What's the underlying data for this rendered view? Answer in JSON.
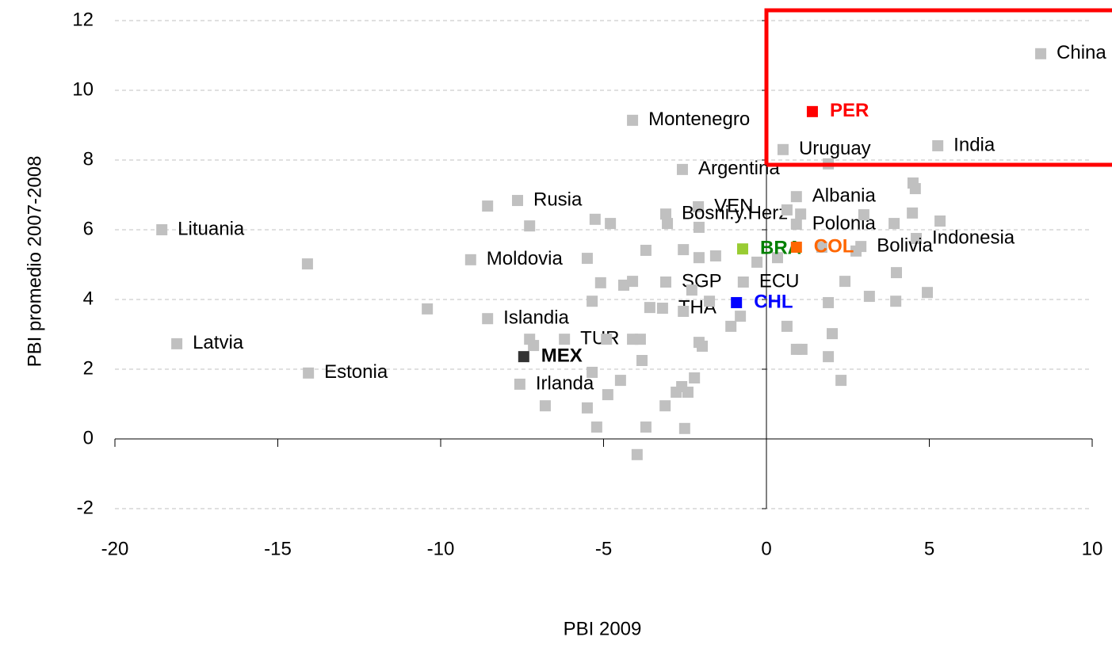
{
  "chart_data": {
    "type": "scatter",
    "xlabel": "PBI 2009",
    "ylabel": "PBI promedio 2007-2008",
    "xlim": [
      -20,
      10
    ],
    "xticks": [
      -20,
      -15,
      -10,
      -5,
      0,
      5,
      10
    ],
    "ylim": [
      -2,
      12
    ],
    "yticks": [
      -2,
      0,
      2,
      4,
      6,
      8,
      10,
      12
    ],
    "grid": true,
    "color": "#c0c0c0",
    "points": [
      {
        "x": 8.42,
        "y": 11.05,
        "label": "China"
      },
      {
        "x": -4.11,
        "y": 9.14,
        "label": "Montenegro"
      },
      {
        "x": 0.51,
        "y": 8.3,
        "label": "Uruguay"
      },
      {
        "x": 5.26,
        "y": 8.41,
        "label": "India"
      },
      {
        "x": -2.58,
        "y": 7.73,
        "label": "Argentina"
      },
      {
        "x": -2.09,
        "y": 6.66,
        "label": "VEN"
      },
      {
        "x": -7.64,
        "y": 6.84,
        "label": "Rusia"
      },
      {
        "x": -18.56,
        "y": 6.0,
        "label": "Lituania"
      },
      {
        "x": 0.92,
        "y": 6.95,
        "label": "Albania"
      },
      {
        "x": -3.09,
        "y": 6.45,
        "label": "Bosni.y.Herz"
      },
      {
        "x": 0.92,
        "y": 6.16,
        "label": "Polonia"
      },
      {
        "x": 4.6,
        "y": 5.75,
        "label": "Indonesia"
      },
      {
        "x": 2.9,
        "y": 5.52,
        "label": "Bolivia"
      },
      {
        "x": -9.08,
        "y": 5.14,
        "label": "Moldovia"
      },
      {
        "x": -3.09,
        "y": 4.5,
        "label": "SGP"
      },
      {
        "x": -0.71,
        "y": 4.5,
        "label": "ECU"
      },
      {
        "x": -3.19,
        "y": 3.75,
        "label": "THA"
      },
      {
        "x": -8.56,
        "y": 3.45,
        "label": "Islandia"
      },
      {
        "x": -6.2,
        "y": 2.86,
        "label": "TUR"
      },
      {
        "x": -18.1,
        "y": 2.73,
        "label": "Latvia"
      },
      {
        "x": -14.06,
        "y": 1.89,
        "label": "Estonia"
      },
      {
        "x": -7.57,
        "y": 1.57,
        "label": "Irlanda"
      },
      {
        "x": -14.09,
        "y": 5.02,
        "label": null
      },
      {
        "x": -10.41,
        "y": 3.73,
        "label": null
      },
      {
        "x": -8.56,
        "y": 6.68,
        "label": null
      },
      {
        "x": -7.27,
        "y": 6.11,
        "label": null
      },
      {
        "x": -5.5,
        "y": 5.18,
        "label": null
      },
      {
        "x": -5.26,
        "y": 6.3,
        "label": null
      },
      {
        "x": -4.79,
        "y": 6.18,
        "label": null
      },
      {
        "x": -3.7,
        "y": 5.41,
        "label": null
      },
      {
        "x": -5.09,
        "y": 4.48,
        "label": null
      },
      {
        "x": -4.38,
        "y": 4.41,
        "label": null
      },
      {
        "x": -4.11,
        "y": 4.52,
        "label": null
      },
      {
        "x": -5.35,
        "y": 3.95,
        "label": null
      },
      {
        "x": -3.58,
        "y": 3.77,
        "label": null
      },
      {
        "x": -3.04,
        "y": 6.18,
        "label": null
      },
      {
        "x": -2.07,
        "y": 6.07,
        "label": null
      },
      {
        "x": -2.55,
        "y": 5.43,
        "label": null
      },
      {
        "x": -2.07,
        "y": 5.2,
        "label": null
      },
      {
        "x": -1.56,
        "y": 5.25,
        "label": null
      },
      {
        "x": -2.29,
        "y": 4.27,
        "label": null
      },
      {
        "x": -1.75,
        "y": 3.95,
        "label": null
      },
      {
        "x": -2.55,
        "y": 3.66,
        "label": null
      },
      {
        "x": -1.09,
        "y": 3.23,
        "label": null
      },
      {
        "x": -0.8,
        "y": 3.52,
        "label": null
      },
      {
        "x": -0.29,
        "y": 5.07,
        "label": null
      },
      {
        "x": 0.34,
        "y": 5.2,
        "label": null
      },
      {
        "x": 0.63,
        "y": 6.57,
        "label": null
      },
      {
        "x": 1.05,
        "y": 6.45,
        "label": null
      },
      {
        "x": 1.7,
        "y": 5.5,
        "label": null
      },
      {
        "x": 1.9,
        "y": 7.89,
        "label": null
      },
      {
        "x": 2.41,
        "y": 4.52,
        "label": null
      },
      {
        "x": 2.75,
        "y": 5.39,
        "label": null
      },
      {
        "x": 2.99,
        "y": 6.43,
        "label": null
      },
      {
        "x": 3.16,
        "y": 4.09,
        "label": null
      },
      {
        "x": 3.92,
        "y": 6.18,
        "label": null
      },
      {
        "x": 3.99,
        "y": 4.77,
        "label": null
      },
      {
        "x": 3.97,
        "y": 3.95,
        "label": null
      },
      {
        "x": 4.5,
        "y": 7.34,
        "label": null
      },
      {
        "x": 4.57,
        "y": 7.18,
        "label": null
      },
      {
        "x": 4.48,
        "y": 6.48,
        "label": null
      },
      {
        "x": 5.33,
        "y": 6.25,
        "label": null
      },
      {
        "x": 4.94,
        "y": 4.2,
        "label": null
      },
      {
        "x": 0.63,
        "y": 3.23,
        "label": null
      },
      {
        "x": 0.92,
        "y": 2.57,
        "label": null
      },
      {
        "x": 1.09,
        "y": 2.57,
        "label": null
      },
      {
        "x": 1.9,
        "y": 3.91,
        "label": null
      },
      {
        "x": 2.02,
        "y": 3.02,
        "label": null
      },
      {
        "x": 1.9,
        "y": 2.36,
        "label": null
      },
      {
        "x": 2.29,
        "y": 1.68,
        "label": null
      },
      {
        "x": -7.27,
        "y": 2.86,
        "label": null
      },
      {
        "x": -7.15,
        "y": 2.68,
        "label": null
      },
      {
        "x": -4.91,
        "y": 2.86,
        "label": null
      },
      {
        "x": -4.11,
        "y": 2.86,
        "label": null
      },
      {
        "x": -3.87,
        "y": 2.86,
        "label": null
      },
      {
        "x": -3.82,
        "y": 2.25,
        "label": null
      },
      {
        "x": -4.48,
        "y": 1.68,
        "label": null
      },
      {
        "x": -4.87,
        "y": 1.27,
        "label": null
      },
      {
        "x": -5.5,
        "y": 0.89,
        "label": null
      },
      {
        "x": -6.79,
        "y": 0.95,
        "label": null
      },
      {
        "x": -5.21,
        "y": 0.34,
        "label": null
      },
      {
        "x": -3.7,
        "y": 0.34,
        "label": null
      },
      {
        "x": -2.51,
        "y": 0.3,
        "label": null
      },
      {
        "x": -3.97,
        "y": -0.45,
        "label": null
      },
      {
        "x": -3.11,
        "y": 0.95,
        "label": null
      },
      {
        "x": -2.77,
        "y": 1.34,
        "label": null
      },
      {
        "x": -2.41,
        "y": 1.34,
        "label": null
      },
      {
        "x": -2.6,
        "y": 1.5,
        "label": null
      },
      {
        "x": -2.21,
        "y": 1.75,
        "label": null
      },
      {
        "x": -2.07,
        "y": 2.77,
        "label": null
      },
      {
        "x": -1.97,
        "y": 2.66,
        "label": null
      },
      {
        "x": -5.35,
        "y": 1.91,
        "label": null
      }
    ],
    "highlights": [
      {
        "x": 1.41,
        "y": 9.39,
        "label": "PER",
        "color": "#ff0000",
        "label_color": "#ff0000"
      },
      {
        "x": -0.73,
        "y": 5.45,
        "label": "BRA",
        "color": "#99cc33",
        "label_color": "#008000"
      },
      {
        "x": 0.92,
        "y": 5.5,
        "label": "COL",
        "color": "#ff6600",
        "label_color": "#ff6600"
      },
      {
        "x": -0.92,
        "y": 3.91,
        "label": "CHL",
        "color": "#0000ff",
        "label_color": "#0000ff"
      },
      {
        "x": -7.45,
        "y": 2.36,
        "label": "MEX",
        "color": "#333333",
        "label_color": "#000000"
      }
    ]
  }
}
